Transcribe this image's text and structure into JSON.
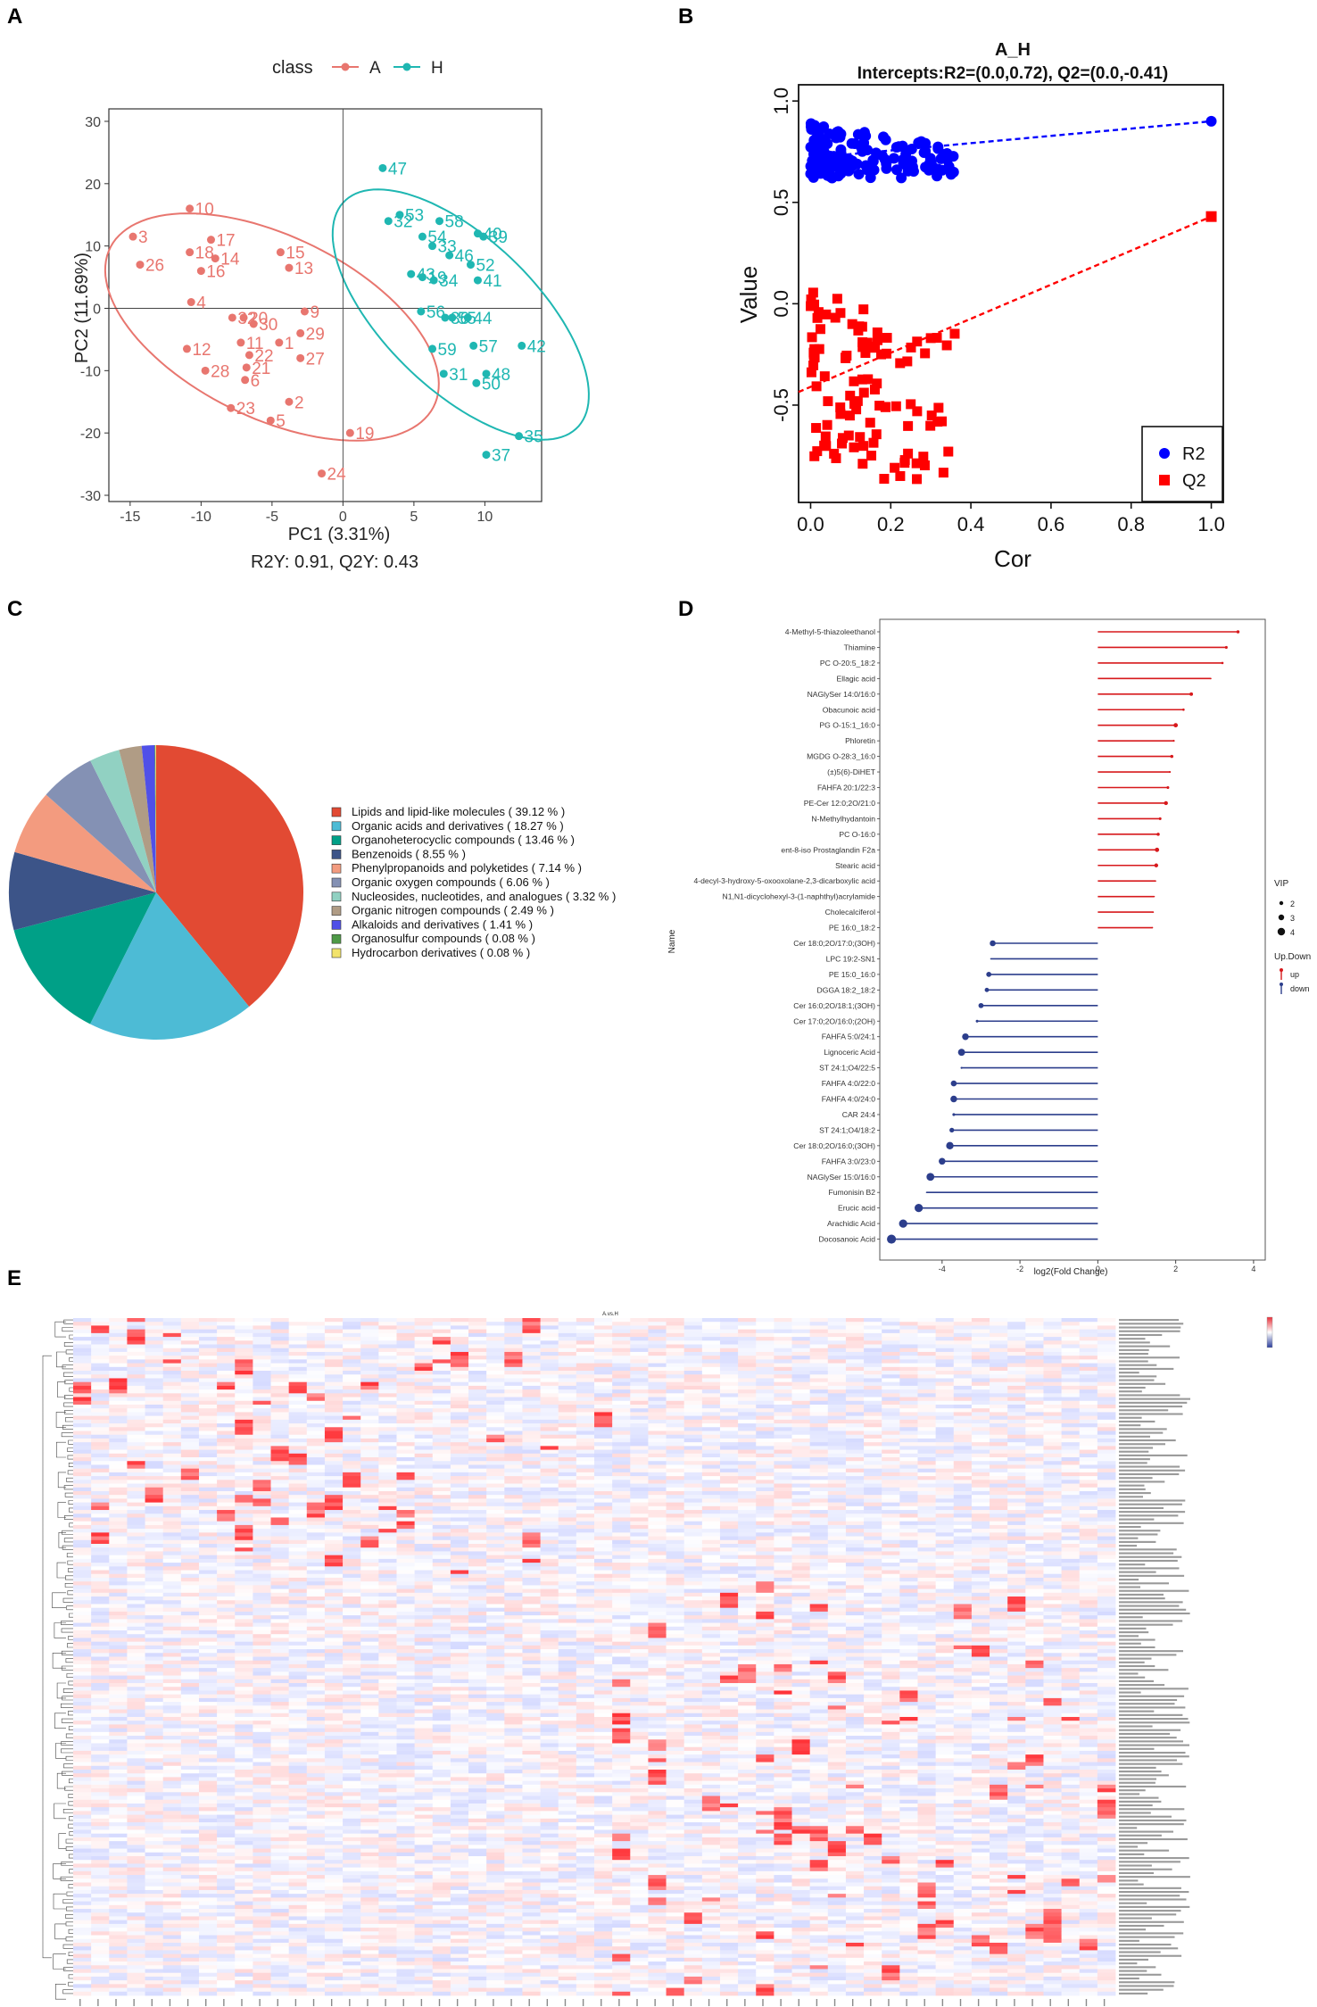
{
  "panels": [
    "A",
    "B",
    "C",
    "D",
    "E"
  ],
  "chart_data": [
    {
      "id": "A",
      "type": "scatter",
      "legend_title": "class",
      "legend": [
        {
          "name": "A",
          "color": "#E8766F"
        },
        {
          "name": "H",
          "color": "#1FB7B2"
        }
      ],
      "xlabel": "PC1 (3.31%)",
      "ylabel": "PC2 (11.69%)",
      "subtitle": "R2Y: 0.91, Q2Y: 0.43",
      "xlim": [
        -16.5,
        14
      ],
      "ylim": [
        -31,
        32
      ],
      "xticks": [
        -15,
        -10,
        -5,
        0,
        5,
        10
      ],
      "yticks": [
        -30,
        -20,
        -10,
        0,
        10,
        20,
        30
      ],
      "ellipses": [
        {
          "group": "A",
          "cx": -5,
          "cy": -3,
          "rx": 19.5,
          "ry": 9.5,
          "angle": -66
        },
        {
          "group": "H",
          "cx": 8.3,
          "cy": -1,
          "rx": 21,
          "ry": 6.6,
          "angle": -72
        }
      ],
      "points": [
        {
          "label": "10",
          "x": -10.8,
          "y": 16,
          "group": "A"
        },
        {
          "label": "3",
          "x": -14.8,
          "y": 11.5,
          "group": "A"
        },
        {
          "label": "26",
          "x": -14.3,
          "y": 7,
          "group": "A"
        },
        {
          "label": "18",
          "x": -10.8,
          "y": 9,
          "group": "A"
        },
        {
          "label": "17",
          "x": -9.3,
          "y": 11,
          "group": "A"
        },
        {
          "label": "14",
          "x": -9,
          "y": 8,
          "group": "A"
        },
        {
          "label": "16",
          "x": -10,
          "y": 6,
          "group": "A"
        },
        {
          "label": "15",
          "x": -4.4,
          "y": 9,
          "group": "A"
        },
        {
          "label": "13",
          "x": -3.8,
          "y": 6.5,
          "group": "A"
        },
        {
          "label": "4",
          "x": -10.7,
          "y": 1,
          "group": "A"
        },
        {
          "label": "9",
          "x": -2.7,
          "y": -0.5,
          "group": "A"
        },
        {
          "label": "32",
          "x": -7.8,
          "y": -1.5,
          "group": "A"
        },
        {
          "label": "20",
          "x": -7,
          "y": -1.5,
          "group": "A"
        },
        {
          "label": "30",
          "x": -6.3,
          "y": -2.5,
          "group": "A"
        },
        {
          "label": "29",
          "x": -3,
          "y": -4,
          "group": "A"
        },
        {
          "label": "12",
          "x": -11,
          "y": -6.5,
          "group": "A"
        },
        {
          "label": "11",
          "x": -7.2,
          "y": -5.5,
          "group": "A"
        },
        {
          "label": "1",
          "x": -4.5,
          "y": -5.5,
          "group": "A"
        },
        {
          "label": "22",
          "x": -6.6,
          "y": -7.5,
          "group": "A"
        },
        {
          "label": "27",
          "x": -3,
          "y": -8,
          "group": "A"
        },
        {
          "label": "28",
          "x": -9.7,
          "y": -10,
          "group": "A"
        },
        {
          "label": "21",
          "x": -6.8,
          "y": -9.5,
          "group": "A"
        },
        {
          "label": "6",
          "x": -6.9,
          "y": -11.5,
          "group": "A"
        },
        {
          "label": "2",
          "x": -3.8,
          "y": -15,
          "group": "A"
        },
        {
          "label": "23",
          "x": -7.9,
          "y": -16,
          "group": "A"
        },
        {
          "label": "5",
          "x": -5.1,
          "y": -18,
          "group": "A"
        },
        {
          "label": "19",
          "x": 0.5,
          "y": -20,
          "group": "A"
        },
        {
          "label": "24",
          "x": -1.5,
          "y": -26.5,
          "group": "A"
        },
        {
          "label": "47",
          "x": 2.8,
          "y": 22.5,
          "group": "H"
        },
        {
          "label": "53",
          "x": 4,
          "y": 15,
          "group": "H"
        },
        {
          "label": "32",
          "x": 3.2,
          "y": 14,
          "group": "H"
        },
        {
          "label": "58",
          "x": 6.8,
          "y": 14,
          "group": "H"
        },
        {
          "label": "54",
          "x": 5.6,
          "y": 11.5,
          "group": "H"
        },
        {
          "label": "33",
          "x": 6.3,
          "y": 10,
          "group": "H"
        },
        {
          "label": "40",
          "x": 9.5,
          "y": 12,
          "group": "H"
        },
        {
          "label": "39",
          "x": 9.9,
          "y": 11.5,
          "group": "H"
        },
        {
          "label": "46",
          "x": 7.5,
          "y": 8.5,
          "group": "H"
        },
        {
          "label": "52",
          "x": 9,
          "y": 7,
          "group": "H"
        },
        {
          "label": "43",
          "x": 4.8,
          "y": 5.5,
          "group": "H"
        },
        {
          "label": "19",
          "x": 5.6,
          "y": 5,
          "group": "H"
        },
        {
          "label": "34",
          "x": 6.4,
          "y": 4.5,
          "group": "H"
        },
        {
          "label": "41",
          "x": 9.5,
          "y": 4.5,
          "group": "H"
        },
        {
          "label": "56",
          "x": 5.5,
          "y": -0.5,
          "group": "H"
        },
        {
          "label": "36",
          "x": 7.2,
          "y": -1.5,
          "group": "H"
        },
        {
          "label": "55",
          "x": 7.7,
          "y": -1.5,
          "group": "H"
        },
        {
          "label": "44",
          "x": 8.8,
          "y": -1.5,
          "group": "H"
        },
        {
          "label": "59",
          "x": 6.3,
          "y": -6.5,
          "group": "H"
        },
        {
          "label": "57",
          "x": 9.2,
          "y": -6,
          "group": "H"
        },
        {
          "label": "42",
          "x": 12.6,
          "y": -6,
          "group": "H"
        },
        {
          "label": "31",
          "x": 7.1,
          "y": -10.5,
          "group": "H"
        },
        {
          "label": "48",
          "x": 10.1,
          "y": -10.5,
          "group": "H"
        },
        {
          "label": "50",
          "x": 9.4,
          "y": -12,
          "group": "H"
        },
        {
          "label": "35",
          "x": 12.4,
          "y": -20.5,
          "group": "H"
        },
        {
          "label": "37",
          "x": 10.1,
          "y": -23.5,
          "group": "H"
        }
      ]
    },
    {
      "id": "B",
      "type": "scatter",
      "title": "A_H",
      "subtitle": "Intercepts:R2=(0.0,0.72), Q2=(0.0,-0.41)",
      "xlabel": "Cor",
      "ylabel": "Value",
      "xlim": [
        -0.03,
        1.03
      ],
      "ylim": [
        -0.98,
        1.08
      ],
      "xticks": [
        "0.0",
        "0.2",
        "0.4",
        "0.6",
        "0.8",
        "1.0"
      ],
      "yticks": [
        "-0.5",
        "0.0",
        "0.5",
        "1.0"
      ],
      "legend": [
        {
          "name": "R2",
          "color": "#0000FF",
          "shape": "circle"
        },
        {
          "name": "Q2",
          "color": "#FF0000",
          "shape": "square"
        }
      ],
      "r2_line": {
        "intercept": 0.72,
        "end": [
          1.0,
          0.9
        ]
      },
      "q2_line": {
        "intercept": -0.41,
        "end": [
          1.0,
          0.43
        ]
      },
      "r2_cloud": {
        "x_range": [
          0.0,
          0.36
        ],
        "y_range": [
          0.62,
          0.89
        ]
      },
      "q2_cloud": {
        "x_range": [
          0.0,
          0.36
        ],
        "y_range": [
          -0.88,
          0.08
        ]
      },
      "r2_final": [
        1.0,
        0.9
      ],
      "q2_final": [
        1.0,
        0.43
      ]
    },
    {
      "id": "C",
      "type": "pie",
      "slices": [
        {
          "label": "Lipids and lipid-like molecules",
          "value": 39.12,
          "text": "( 39.12 % )",
          "color": "#E24A33"
        },
        {
          "label": "Organic acids and derivatives",
          "value": 18.27,
          "text": "( 18.27 % )",
          "color": "#4DBBD5"
        },
        {
          "label": "Organoheterocyclic compounds",
          "value": 13.46,
          "text": "( 13.46 % )",
          "color": "#00A087"
        },
        {
          "label": "Benzenoids",
          "value": 8.55,
          "text": "( 8.55 % )",
          "color": "#3C5488"
        },
        {
          "label": "Phenylpropanoids and polyketides",
          "value": 7.14,
          "text": "( 7.14 % )",
          "color": "#F39B7F"
        },
        {
          "label": "Organic oxygen compounds",
          "value": 6.06,
          "text": "( 6.06 % )",
          "color": "#8491B4"
        },
        {
          "label": "Nucleosides, nucleotides, and analogues",
          "value": 3.32,
          "text": "( 3.32 % )",
          "color": "#91D1C2"
        },
        {
          "label": "Organic nitrogen compounds",
          "value": 2.49,
          "text": "( 2.49 % )",
          "color": "#B09C85"
        },
        {
          "label": "Alkaloids and derivatives",
          "value": 1.41,
          "text": "( 1.41 % )",
          "color": "#5050E8"
        },
        {
          "label": "Organosulfur compounds",
          "value": 0.08,
          "text": "( 0.08 % )",
          "color": "#4E9A47"
        },
        {
          "label": "Hydrocarbon derivatives",
          "value": 0.08,
          "text": "( 0.08 % )",
          "color": "#F2E36B"
        }
      ]
    },
    {
      "id": "D",
      "type": "bar",
      "xlabel": "log2(Fold Change)",
      "ylabel": "Name",
      "xlim": [
        -5.6,
        4.3
      ],
      "xticks": [
        -4,
        -2,
        0,
        2,
        4
      ],
      "legend_vip_title": "VIP",
      "legend_vip": [
        "2",
        "3",
        "4"
      ],
      "legend_dir_title": "Up.Down",
      "legend_dir": [
        {
          "name": "up",
          "color": "#D7191C"
        },
        {
          "name": "down",
          "color": "#2C3E8C"
        }
      ],
      "items": [
        {
          "name": "4-Methyl-5-thiazoleethanol",
          "fc": 3.6,
          "vip": 2.3,
          "dir": "up"
        },
        {
          "name": "Thiamine",
          "fc": 3.3,
          "vip": 2.2,
          "dir": "up"
        },
        {
          "name": "PC O-20:5_18:2",
          "fc": 3.2,
          "vip": 2.1,
          "dir": "up"
        },
        {
          "name": "Ellagic acid",
          "fc": 2.9,
          "vip": 1.9,
          "dir": "up"
        },
        {
          "name": "NAGlySer 14:0/16:0",
          "fc": 2.4,
          "vip": 2.4,
          "dir": "up"
        },
        {
          "name": "Obacunoic acid",
          "fc": 2.2,
          "vip": 2.1,
          "dir": "up"
        },
        {
          "name": "PG O-15:1_16:0",
          "fc": 2.0,
          "vip": 2.6,
          "dir": "up"
        },
        {
          "name": "Phloretin",
          "fc": 1.95,
          "vip": 2.0,
          "dir": "up"
        },
        {
          "name": "MGDG O-28:3_16:0",
          "fc": 1.9,
          "vip": 2.3,
          "dir": "up"
        },
        {
          "name": "(±)5(6)-DiHET",
          "fc": 1.85,
          "vip": 2.0,
          "dir": "up"
        },
        {
          "name": "FAHFA 20:1/22:3",
          "fc": 1.8,
          "vip": 2.2,
          "dir": "up"
        },
        {
          "name": "PE-Cer 12:0;2O/21:0",
          "fc": 1.75,
          "vip": 2.5,
          "dir": "up"
        },
        {
          "name": "N-Methylhydantoin",
          "fc": 1.6,
          "vip": 2.2,
          "dir": "up"
        },
        {
          "name": "PC O-16:0",
          "fc": 1.55,
          "vip": 2.3,
          "dir": "up"
        },
        {
          "name": "ent-8-iso Prostaglandin F2a",
          "fc": 1.52,
          "vip": 2.6,
          "dir": "up"
        },
        {
          "name": "Stearic acid",
          "fc": 1.5,
          "vip": 2.5,
          "dir": "up"
        },
        {
          "name": "4-decyl-3-hydroxy-5-oxooxolane-2,3-dicarboxylic acid",
          "fc": 1.48,
          "vip": 1.9,
          "dir": "up"
        },
        {
          "name": "N1,N1-dicyclohexyl-3-(1-naphthyl)acrylamide",
          "fc": 1.45,
          "vip": 1.8,
          "dir": "up"
        },
        {
          "name": "Cholecalciferol",
          "fc": 1.42,
          "vip": 1.9,
          "dir": "up"
        },
        {
          "name": "PE 16:0_18:2",
          "fc": 1.4,
          "vip": 1.9,
          "dir": "up"
        },
        {
          "name": "Cer 18:0;2O/17:0;(3OH)",
          "fc": -2.7,
          "vip": 3.0,
          "dir": "down"
        },
        {
          "name": "LPC 19:2-SN1",
          "fc": -2.75,
          "vip": 1.8,
          "dir": "down"
        },
        {
          "name": "PE 15:0_16:0",
          "fc": -2.8,
          "vip": 2.8,
          "dir": "down"
        },
        {
          "name": "DGGA 18:2_18:2",
          "fc": -2.85,
          "vip": 2.6,
          "dir": "down"
        },
        {
          "name": "Cer 16:0;2O/18:1;(3OH)",
          "fc": -3.0,
          "vip": 2.8,
          "dir": "down"
        },
        {
          "name": "Cer 17:0;2O/16:0;(2OH)",
          "fc": -3.1,
          "vip": 2.2,
          "dir": "down"
        },
        {
          "name": "FAHFA 5:0/24:1",
          "fc": -3.4,
          "vip": 3.2,
          "dir": "down"
        },
        {
          "name": "Lignoceric Acid",
          "fc": -3.5,
          "vip": 3.3,
          "dir": "down"
        },
        {
          "name": "ST 24:1;O4/22:5",
          "fc": -3.5,
          "vip": 2.0,
          "dir": "down"
        },
        {
          "name": "FAHFA 4:0/22:0",
          "fc": -3.7,
          "vip": 3.0,
          "dir": "down"
        },
        {
          "name": "FAHFA 4:0/24:0",
          "fc": -3.7,
          "vip": 3.2,
          "dir": "down"
        },
        {
          "name": "CAR 24:4",
          "fc": -3.7,
          "vip": 2.2,
          "dir": "down"
        },
        {
          "name": "ST 24:1;O4/18:2",
          "fc": -3.75,
          "vip": 2.7,
          "dir": "down"
        },
        {
          "name": "Cer 18:0;2O/16:0;(3OH)",
          "fc": -3.8,
          "vip": 3.4,
          "dir": "down"
        },
        {
          "name": "FAHFA 3:0/23:0",
          "fc": -4.0,
          "vip": 3.2,
          "dir": "down"
        },
        {
          "name": "NAGlySer 15:0/16:0",
          "fc": -4.3,
          "vip": 3.5,
          "dir": "down"
        },
        {
          "name": "Fumonisin B2",
          "fc": -4.4,
          "vip": 1.8,
          "dir": "down"
        },
        {
          "name": "Erucic acid",
          "fc": -4.6,
          "vip": 3.6,
          "dir": "down"
        },
        {
          "name": "Arachidic Acid",
          "fc": -5.0,
          "vip": 3.6,
          "dir": "down"
        },
        {
          "name": "Docosanoic Acid",
          "fc": -5.3,
          "vip": 3.8,
          "dir": "down"
        }
      ]
    },
    {
      "id": "E",
      "type": "heatmap",
      "title": "A.vs.H",
      "rows": 180,
      "columns": 58,
      "scale_colors": [
        "#2C3E9C",
        "#FFFFFF",
        "#E8303A"
      ]
    }
  ]
}
